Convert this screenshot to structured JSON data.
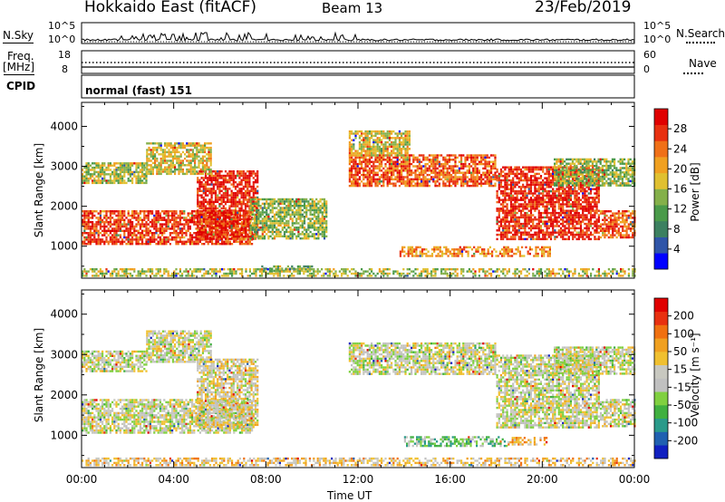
{
  "header": {
    "radar": "Hokkaido East (fitACF)",
    "beam": "Beam 13",
    "date": "23/Feb/2019"
  },
  "nsky": {
    "label": "N.Sky",
    "tick_top": "10^5",
    "tick_bottom": "10^0",
    "right_label": "N.Search",
    "right_tick_top": "10^5",
    "right_tick_bottom": "10^0"
  },
  "freq": {
    "label_line1": "Freq.",
    "label_line2": "[MHz]",
    "tick_top": "18",
    "tick_bottom": "8",
    "right_label": "Nave",
    "right_tick_top": "60",
    "right_tick_bottom": "0"
  },
  "cpid": {
    "label": "CPID",
    "text": "normal (fast) 151"
  },
  "chart_data": [
    {
      "type": "heatmap",
      "quantity": "Power",
      "ylabel": "Slant Range [km]",
      "ylim": [
        200,
        4600
      ],
      "yticks": [
        "1000",
        "2000",
        "3000",
        "4000"
      ],
      "xlim": [
        0,
        24
      ],
      "colorbar_label": "Power [dB]",
      "colorbar_ticks": [
        "4",
        "8",
        "12",
        "16",
        "20",
        "24",
        "28"
      ],
      "colors": [
        "#0000ff",
        "#2f55a8",
        "#3c8060",
        "#4a9a4a",
        "#84b04a",
        "#e0c030",
        "#f0a020",
        "#f07018",
        "#e83010",
        "#e00000"
      ],
      "regions": [
        {
          "t0": 0.0,
          "t1": 7.4,
          "r0": 1050,
          "r1": 1900,
          "level": 0.85
        },
        {
          "t0": 5.0,
          "t1": 7.6,
          "r0": 1200,
          "r1": 2900,
          "level": 0.9
        },
        {
          "t0": 0.0,
          "t1": 2.8,
          "r0": 2600,
          "r1": 3100,
          "level": 0.5
        },
        {
          "t0": 2.8,
          "t1": 5.6,
          "r0": 2800,
          "r1": 3600,
          "level": 0.55
        },
        {
          "t0": 7.3,
          "t1": 10.6,
          "r0": 1200,
          "r1": 2200,
          "level": 0.45
        },
        {
          "t0": 11.6,
          "t1": 18.0,
          "r0": 2500,
          "r1": 3300,
          "level": 0.8
        },
        {
          "t0": 11.6,
          "t1": 14.2,
          "r0": 3300,
          "r1": 3900,
          "level": 0.55
        },
        {
          "t0": 18.0,
          "t1": 22.5,
          "r0": 1200,
          "r1": 3000,
          "level": 0.9
        },
        {
          "t0": 22.5,
          "t1": 24.0,
          "r0": 1200,
          "r1": 1900,
          "level": 0.8
        },
        {
          "t0": 20.5,
          "t1": 24.0,
          "r0": 2500,
          "r1": 3200,
          "level": 0.45
        },
        {
          "t0": 13.8,
          "t1": 20.3,
          "r0": 760,
          "r1": 1000,
          "level": 0.7
        },
        {
          "t0": 7.8,
          "t1": 10.0,
          "r0": 400,
          "r1": 520,
          "level": 0.35
        },
        {
          "t0": 0.0,
          "t1": 24.0,
          "r0": 250,
          "r1": 450,
          "level": 0.5
        }
      ]
    },
    {
      "type": "heatmap",
      "quantity": "Velocity",
      "ylabel": "Slant Range [km]",
      "ylim": [
        200,
        4600
      ],
      "yticks": [
        "1000",
        "2000",
        "3000",
        "4000"
      ],
      "xlim": [
        0,
        24
      ],
      "xticks": [
        "00:00",
        "04:00",
        "08:00",
        "12:00",
        "16:00",
        "20:00",
        "00:00"
      ],
      "xlabel": "Time UT",
      "colorbar_label": "Velocity [m s⁻¹]",
      "colorbar_ticks": [
        "200",
        "100",
        "50",
        "15",
        "-15",
        "-50",
        "-100",
        "-200"
      ],
      "colors": [
        "#1020c0",
        "#2060b0",
        "#2a9a8a",
        "#40b040",
        "#80d040",
        "#c0c0c0",
        "#c8c8c0",
        "#f0c030",
        "#f0a020",
        "#f07010",
        "#e83010",
        "#e00000"
      ],
      "regions": [
        {
          "t0": 0.0,
          "t1": 7.4,
          "r0": 1050,
          "r1": 1900,
          "level": 0.5
        },
        {
          "t0": 5.0,
          "t1": 7.6,
          "r0": 1200,
          "r1": 2900,
          "level": 0.55
        },
        {
          "t0": 0.0,
          "t1": 2.8,
          "r0": 2600,
          "r1": 3100,
          "level": 0.5
        },
        {
          "t0": 2.8,
          "t1": 5.6,
          "r0": 2800,
          "r1": 3600,
          "level": 0.5
        },
        {
          "t0": 11.6,
          "t1": 18.0,
          "r0": 2500,
          "r1": 3300,
          "level": 0.5
        },
        {
          "t0": 18.0,
          "t1": 22.5,
          "r0": 1200,
          "r1": 3000,
          "level": 0.5
        },
        {
          "t0": 22.5,
          "t1": 24.0,
          "r0": 1200,
          "r1": 1900,
          "level": 0.5
        },
        {
          "t0": 20.5,
          "t1": 24.0,
          "r0": 2500,
          "r1": 3200,
          "level": 0.5
        },
        {
          "t0": 14.0,
          "t1": 18.5,
          "r0": 760,
          "r1": 980,
          "level": 0.35
        },
        {
          "t0": 18.5,
          "t1": 20.2,
          "r0": 780,
          "r1": 960,
          "level": 0.65
        },
        {
          "t0": 0.0,
          "t1": 24.0,
          "r0": 250,
          "r1": 450,
          "level": 0.62
        }
      ]
    }
  ]
}
